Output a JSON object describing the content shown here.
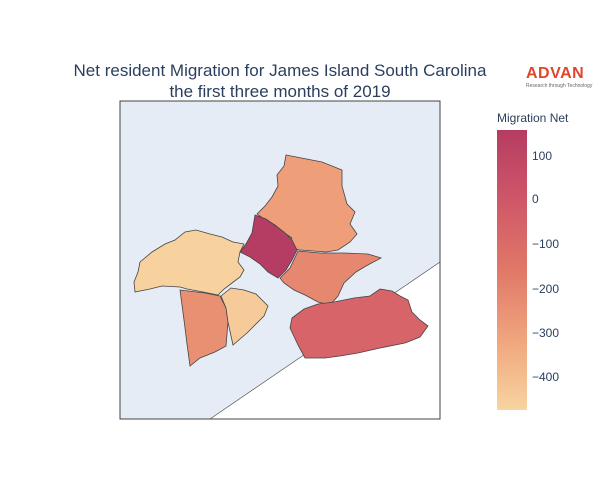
{
  "title_line1": "Net resident Migration for James Island South Carolina",
  "title_line2": "the first three months of 2019",
  "logo": {
    "word": "ADVAN",
    "tagline": "Research through Technology",
    "color": "#e1462b"
  },
  "colorbar": {
    "title": "Migration Net",
    "min": -470,
    "max": 160,
    "ticks": [
      "100",
      "0",
      "−100",
      "−200",
      "−300",
      "−400"
    ],
    "tick_values": [
      100,
      0,
      -100,
      -200,
      -300,
      -400
    ],
    "colorscale": [
      "#f7d4a0",
      "#f0a57d",
      "#e07868",
      "#cf5768",
      "#b53c62"
    ]
  },
  "map": {
    "land_color": "#ffffff",
    "water_color": "#e5ecf6",
    "regions": [
      {
        "name": "north",
        "value": -290
      },
      {
        "name": "northwest",
        "value": -460
      },
      {
        "name": "central",
        "value": 160
      },
      {
        "name": "east-central",
        "value": -210
      },
      {
        "name": "southwest",
        "value": -240
      },
      {
        "name": "south",
        "value": -440
      },
      {
        "name": "southeast",
        "value": -60
      }
    ]
  }
}
